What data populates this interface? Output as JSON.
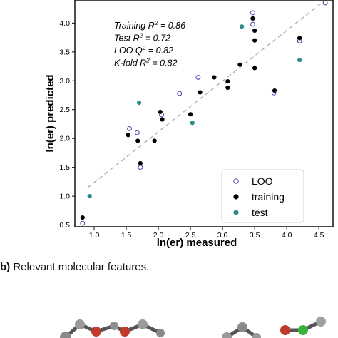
{
  "chart_data": {
    "type": "scatter",
    "xlabel": "ln(er) measured",
    "ylabel": "ln(er) predicted",
    "xlim": [
      0.7,
      4.72
    ],
    "ylim": [
      0.47,
      4.4
    ],
    "xticks": [
      1.0,
      1.5,
      2.0,
      2.5,
      3.0,
      3.5,
      4.0,
      4.5
    ],
    "yticks": [
      0.5,
      1.0,
      1.5,
      2.0,
      2.5,
      3.0,
      3.5,
      4.0
    ],
    "xtick_labels": [
      "1.0",
      "1.5",
      "2.0",
      "2.5",
      "3.0",
      "3.5",
      "4.0",
      "4.5"
    ],
    "ytick_labels": [
      "0.5",
      "1.0",
      "1.5",
      "2.0",
      "2.5",
      "3.0",
      "3.5",
      "4.0"
    ],
    "grid": false,
    "legend_position": "lower-right",
    "fit_line": {
      "x": [
        0.9,
        4.6
      ],
      "y": [
        1.15,
        4.4
      ],
      "style": "dashed",
      "color": "#b8a99e"
    },
    "annotations": [
      {
        "prefix": "Training R",
        "sup": "2",
        "suffix": " = 0.86"
      },
      {
        "prefix": "Test R",
        "sup": "2",
        "suffix": " = 0.72"
      },
      {
        "prefix": "LOO Q",
        "sup": "2",
        "suffix": " = 0.82"
      },
      {
        "prefix": "K-fold R",
        "sup": "2",
        "suffix": " = 0.82"
      }
    ],
    "series": [
      {
        "name": "LOO",
        "marker": "open-circle",
        "color": "#4a3fa6",
        "points": [
          [
            0.82,
            0.53
          ],
          [
            1.55,
            2.17
          ],
          [
            1.67,
            2.1
          ],
          [
            1.72,
            1.5
          ],
          [
            2.05,
            2.41
          ],
          [
            2.33,
            2.78
          ],
          [
            2.62,
            3.06
          ],
          [
            3.47,
            4.18
          ],
          [
            3.47,
            3.98
          ],
          [
            3.8,
            2.79
          ],
          [
            4.2,
            3.69
          ],
          [
            4.6,
            4.35
          ]
        ]
      },
      {
        "name": "training",
        "marker": "filled-circle",
        "color": "#000000",
        "points": [
          [
            0.82,
            0.63
          ],
          [
            1.53,
            2.06
          ],
          [
            1.68,
            1.96
          ],
          [
            1.72,
            1.57
          ],
          [
            1.94,
            1.96
          ],
          [
            2.03,
            2.46
          ],
          [
            2.06,
            2.33
          ],
          [
            2.5,
            2.42
          ],
          [
            2.65,
            2.8
          ],
          [
            2.87,
            3.06
          ],
          [
            3.08,
            2.99
          ],
          [
            3.08,
            2.88
          ],
          [
            3.27,
            3.28
          ],
          [
            3.47,
            4.08
          ],
          [
            3.5,
            3.87
          ],
          [
            3.5,
            3.7
          ],
          [
            3.5,
            3.22
          ],
          [
            3.81,
            2.83
          ],
          [
            4.2,
            3.74
          ],
          [
            4.6,
            4.43
          ]
        ]
      },
      {
        "name": "test",
        "marker": "filled-circle",
        "color": "#2e8b88",
        "points": [
          [
            0.93,
            1.0
          ],
          [
            1.7,
            2.62
          ],
          [
            2.53,
            2.27
          ],
          [
            3.3,
            3.94
          ],
          [
            4.2,
            3.36
          ]
        ]
      }
    ]
  },
  "caption": {
    "label": "b)",
    "text": " Relevant molecular features."
  }
}
